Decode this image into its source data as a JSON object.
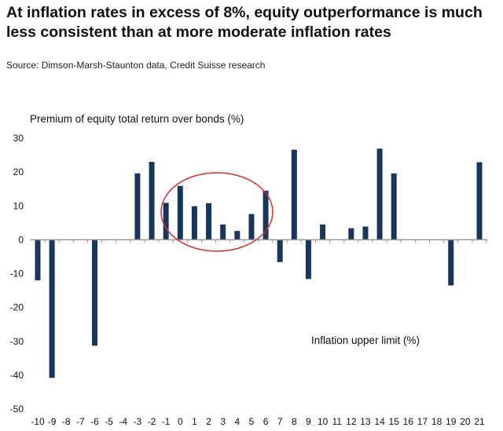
{
  "chart_data": {
    "type": "bar",
    "title": "At inflation rates in excess of 8%, equity outperformance is much less consistent than at more moderate inflation rates",
    "source": "Source:  Dimson-Marsh-Staunton data, Credit Suisse research",
    "ylabel": "Premium of equity total return over bonds (%)",
    "xlabel": "Inflation upper limit (%)",
    "ylim": [
      -50,
      30
    ],
    "yticks": [
      30,
      20,
      10,
      0,
      -10,
      -20,
      -30,
      -40,
      -50
    ],
    "categories": [
      "-10",
      "-9",
      "-8",
      "-7",
      "-6",
      "-5",
      "-4",
      "-3",
      "-2",
      "-1",
      "0",
      "1",
      "2",
      "3",
      "4",
      "5",
      "6",
      "7",
      "8",
      "9",
      "10",
      "11",
      "12",
      "13",
      "14",
      "15",
      "16",
      "17",
      "18",
      "19",
      "20",
      "21"
    ],
    "values": [
      -12.0,
      -40.8,
      0,
      0,
      -31.3,
      0,
      0,
      19.6,
      23.0,
      10.9,
      15.9,
      9.9,
      10.8,
      4.5,
      2.6,
      7.6,
      14.5,
      -6.6,
      26.6,
      -11.6,
      4.5,
      0,
      3.4,
      3.9,
      26.9,
      19.6,
      0,
      0,
      0,
      -13.5,
      0,
      22.9
    ],
    "bar_color": "#17365d",
    "annotation_color": "#d62f2f",
    "annotation": "ellipse highlighting inflation -1 to 6",
    "grid": false,
    "legend": "none"
  }
}
